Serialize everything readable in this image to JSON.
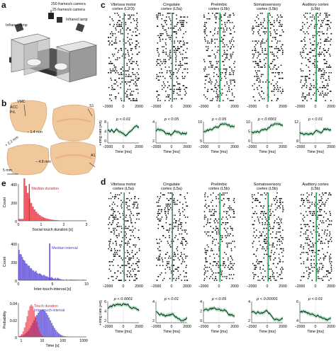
{
  "panels": {
    "a": "a",
    "b": "b",
    "c": "c",
    "d": "d",
    "e": "e"
  },
  "setup": {
    "cam1": "250 frames/s camera",
    "cam2": "25 frames/s camera",
    "lamp_left": "Infrared lamp",
    "lamp_right": "Infrared lamp"
  },
  "brain": {
    "vmc": "VMC",
    "acc": "ACC",
    "pl": "PrL",
    "s1": "S1",
    "a1": "A1",
    "d1": "+ 2.2 mm",
    "d2": "− 1.4 mm",
    "d3": "− 4.8 mm",
    "scale": "5 mm"
  },
  "colors": {
    "green": "#2e9b57",
    "green_light": "#86d3a4",
    "red": "#e8222e",
    "blue": "#4a37d6",
    "purple": "#7a4fb8"
  },
  "c": {
    "regions": [
      {
        "l1": "Vibrissa motor",
        "l2": "cortex (L2/3)",
        "p": "p < 0.01"
      },
      {
        "l1": "Cingulate",
        "l2": "cortex (L5a)",
        "p": "p < 0.05"
      },
      {
        "l1": "Prelimbic",
        "l2": "cortex (L5b)",
        "p": "p < 0.05"
      },
      {
        "l1": "Somatosensory",
        "l2": "cortex (L5b)",
        "p": "p < 0.0001"
      },
      {
        "l1": "Auditory cortex",
        "l2": "(L5b)",
        "p": "p < 0.01"
      }
    ],
    "ylabel": "Firing rate [Hz]",
    "xlabel": "Time [ms]"
  },
  "d": {
    "regions": [
      {
        "l1": "Vibrissa motor",
        "l2": "cortex (L5a)",
        "p": "p < 0.0001"
      },
      {
        "l1": "Cingulate",
        "l2": "cortex (L5a)",
        "p": "p < 0.01"
      },
      {
        "l1": "Prelimbic",
        "l2": "cortex (L5b)",
        "p": "p < 0.05"
      },
      {
        "l1": "Somatosensory",
        "l2": "cortex (L5b)",
        "p": "p < 0.00001"
      },
      {
        "l1": "Auditory cortex",
        "l2": "(L5b)",
        "p": "p < 0.01"
      }
    ],
    "ylabel": "Firing rate [Hz]",
    "xlabel": "Time [ms]"
  },
  "ticks_time": [
    "−2000",
    "0",
    "2000"
  ],
  "c_yticks": [
    [
      "8",
      "4",
      "0"
    ],
    [
      "4",
      "2"
    ],
    [
      "10",
      "5"
    ],
    [
      "10",
      "5",
      "0"
    ],
    [
      "12",
      "8"
    ]
  ],
  "d_yticks": [
    [
      "6",
      "4",
      "2"
    ],
    [
      "4",
      "2"
    ],
    [
      "4",
      "2",
      "0"
    ],
    [
      "4",
      "2"
    ],
    [
      "6",
      "4"
    ]
  ],
  "e1": {
    "legend": "Median duration",
    "xlabel": "Social touch duration [s]",
    "ylabel": "Count",
    "yticks": [
      "400",
      "200",
      "0"
    ],
    "xticks": [
      "0",
      "1",
      "2",
      "3"
    ]
  },
  "e2": {
    "legend": "Median interval",
    "xlabel": "Inter-touch-interval [s]",
    "ylabel": "Count",
    "yticks": [
      "400",
      "200",
      "0"
    ],
    "xticks": [
      "0",
      "5",
      "10"
    ]
  },
  "e3": {
    "legend1": "Touch duration",
    "legend2": "Inter-touch-interval",
    "xlabel": "Time [s]",
    "ylabel": "Probability",
    "yticks": [
      "0.04",
      "0.02",
      "0"
    ],
    "xticks": [
      "1",
      "10",
      "100",
      "1000"
    ]
  }
}
